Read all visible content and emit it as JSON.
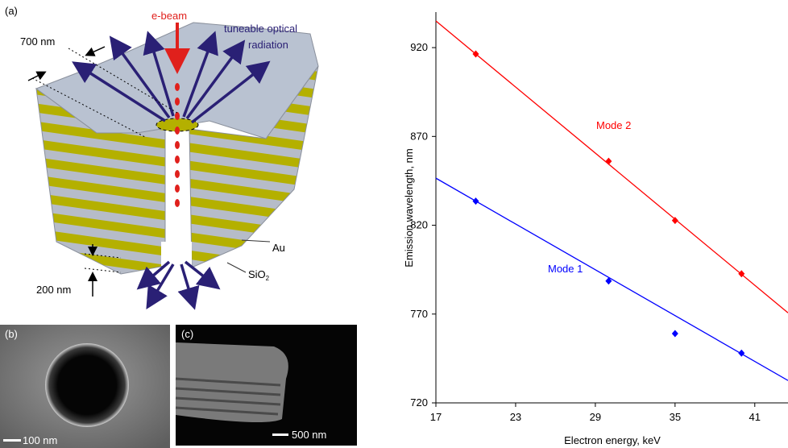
{
  "diagram": {
    "panel_a": "(a)",
    "beam": "e-beam",
    "radiation": [
      "tuneable optical",
      "radiation"
    ],
    "period": "700 nm",
    "gap": "200 nm",
    "metal": "Au",
    "dielectric": "SiO",
    "dielectric_sub": "2"
  },
  "sem_b": {
    "panel": "(b)",
    "scale": "100 nm"
  },
  "sem_c": {
    "panel": "(c)",
    "scale": "500 nm"
  },
  "chart_data": {
    "type": "scatter",
    "x_label": "Electron energy, keV",
    "y_label": "Emission wavelength, nm",
    "xlim": [
      17,
      43.5
    ],
    "ylim": [
      720,
      940
    ],
    "xticks": [
      17,
      23,
      29,
      35,
      41
    ],
    "yticks": [
      720,
      770,
      820,
      870,
      920
    ],
    "x": [
      20,
      30,
      35,
      40
    ],
    "series": [
      {
        "name": "Mode 1",
        "color": "#0000ff",
        "values": [
          833.6,
          788.6,
          759,
          748
        ],
        "fit": {
          "x": [
            17,
            43.5
          ],
          "values": [
            846.5,
            732.6
          ]
        }
      },
      {
        "name": "Mode 2",
        "color": "#ff0000",
        "values": [
          916.4,
          856,
          822.7,
          792.7
        ],
        "fit": {
          "x": [
            17,
            43.5
          ],
          "values": [
            935,
            770.7
          ]
        }
      }
    ]
  }
}
